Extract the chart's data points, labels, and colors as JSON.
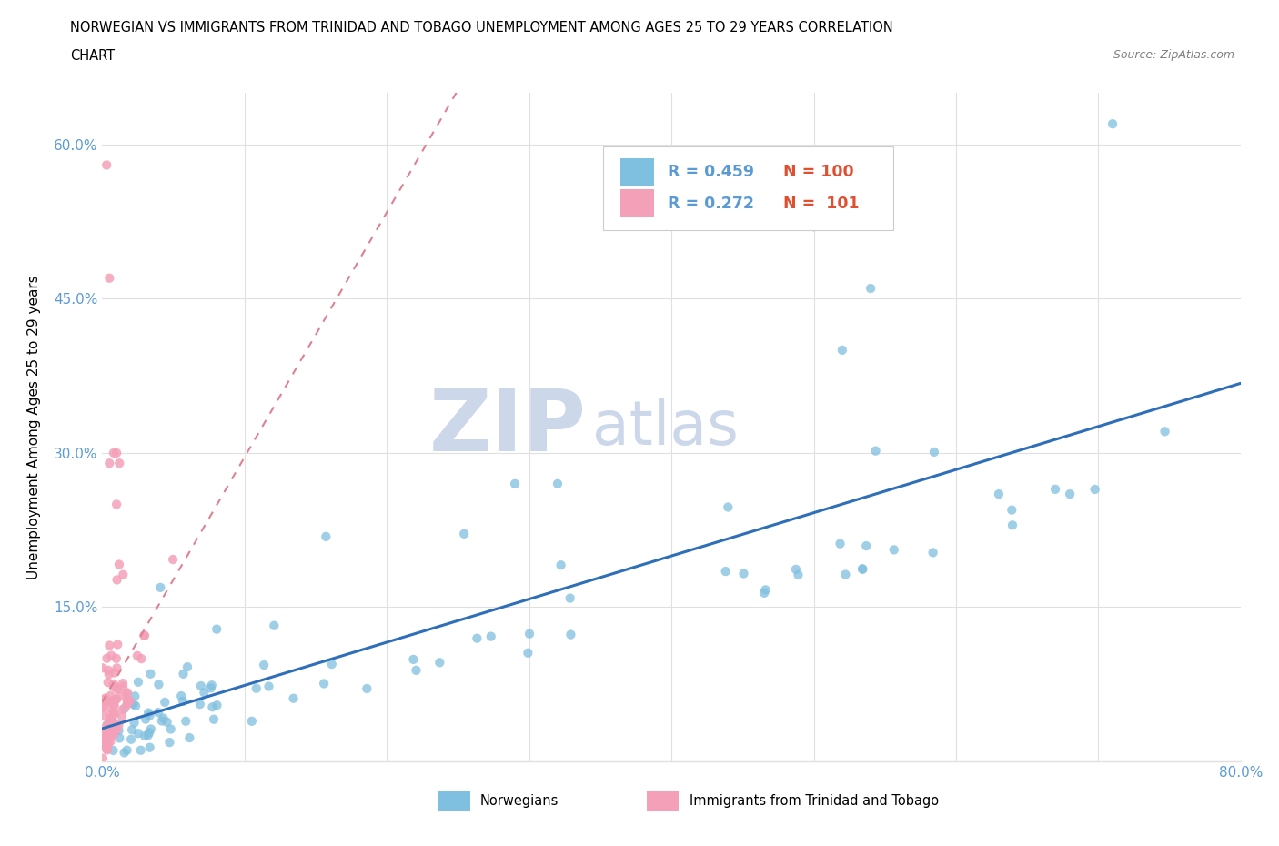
{
  "title_line1": "NORWEGIAN VS IMMIGRANTS FROM TRINIDAD AND TOBAGO UNEMPLOYMENT AMONG AGES 25 TO 29 YEARS CORRELATION",
  "title_line2": "CHART",
  "source_text": "Source: ZipAtlas.com",
  "ylabel": "Unemployment Among Ages 25 to 29 years",
  "xlim": [
    0.0,
    0.8
  ],
  "ylim": [
    0.0,
    0.65
  ],
  "xtick_positions": [
    0.0,
    0.1,
    0.2,
    0.3,
    0.4,
    0.5,
    0.6,
    0.7,
    0.8
  ],
  "xticklabels": [
    "0.0%",
    "",
    "",
    "",
    "",
    "",
    "",
    "",
    "80.0%"
  ],
  "ytick_positions": [
    0.0,
    0.15,
    0.3,
    0.45,
    0.6
  ],
  "yticklabels": [
    "",
    "15.0%",
    "30.0%",
    "45.0%",
    "60.0%"
  ],
  "legend_r_blue": "R = 0.459",
  "legend_n_blue": "N = 100",
  "legend_r_pink": "R = 0.272",
  "legend_n_pink": "N =  101",
  "norwegian_color": "#7fbfdf",
  "immigrant_color": "#f4a0b8",
  "trendline_blue_color": "#2f6fba",
  "trendline_pink_color": "#e08090",
  "watermark_zip": "ZIP",
  "watermark_atlas": "atlas",
  "watermark_color": "#ccd8ea",
  "background_color": "#ffffff",
  "tick_color": "#5b9bd5",
  "grid_color": "#e0e0e0",
  "legend_text_blue": "#5b9bd5",
  "legend_text_red": "#e05030"
}
